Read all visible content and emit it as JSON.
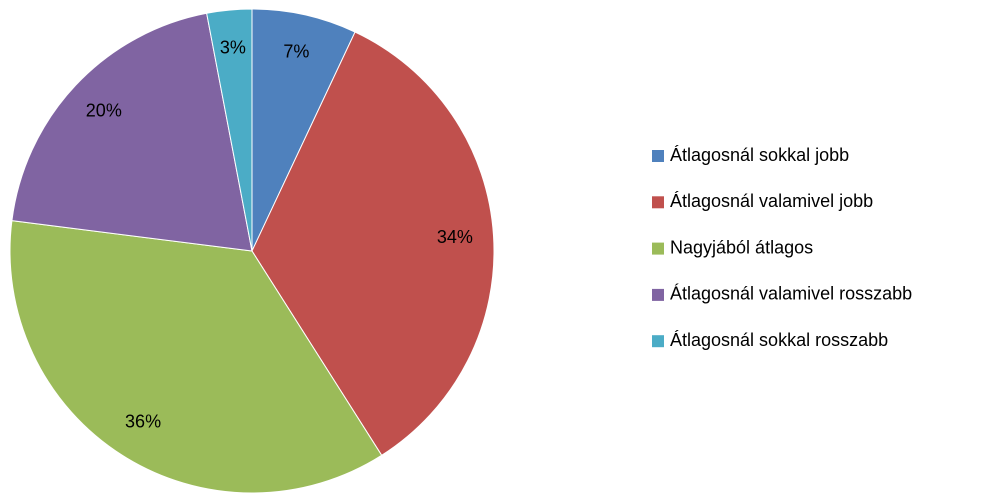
{
  "chart_data": {
    "type": "pie",
    "categories": [
      "Átlagosnál sokkal jobb",
      "Átlagosnál valamivel jobb",
      "Nagyjából átlagos",
      "Átlagosnál valamivel rosszabb",
      "Átlagosnál sokkal rosszabb"
    ],
    "values": [
      7,
      34,
      36,
      20,
      3
    ],
    "value_labels": [
      "7%",
      "34%",
      "36%",
      "20%",
      "3%"
    ],
    "colors": [
      "#4f81bd",
      "#c0504d",
      "#9bbb59",
      "#8064a2",
      "#4bacc6"
    ],
    "legend": "right"
  }
}
